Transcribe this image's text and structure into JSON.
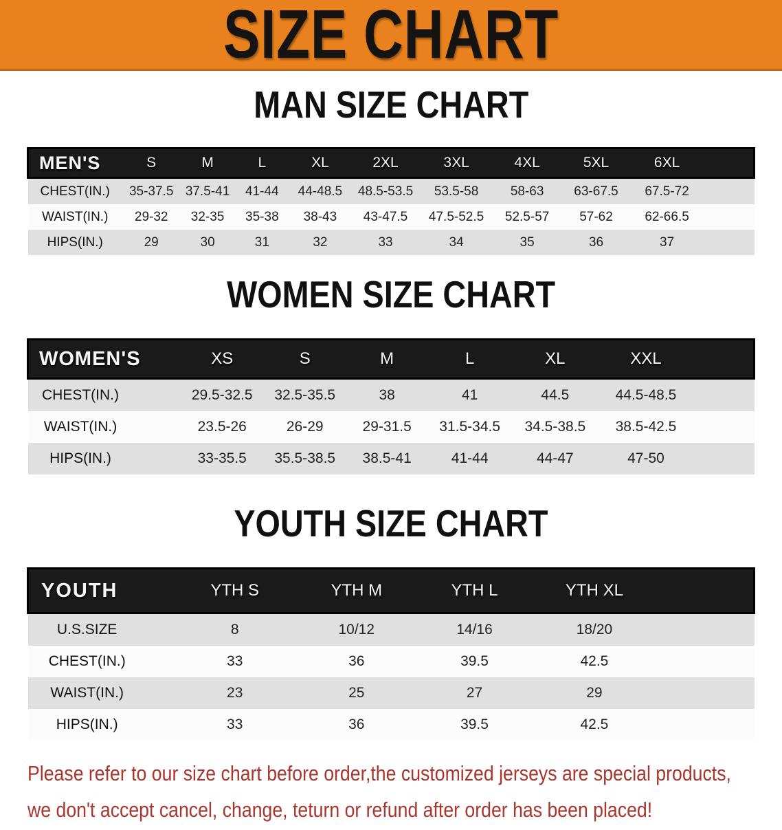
{
  "banner": {
    "title": "SIZE CHART"
  },
  "sections": {
    "men": {
      "heading": "MAN SIZE CHART",
      "table": {
        "label": "MEN'S",
        "columns": [
          "S",
          "M",
          "L",
          "XL",
          "2XL",
          "3XL",
          "4XL",
          "5XL",
          "6XL"
        ],
        "rows": [
          {
            "label": "CHEST(IN.)",
            "values": [
              "35-37.5",
              "37.5-41",
              "41-44",
              "44-48.5",
              "48.5-53.5",
              "53.5-58",
              "58-63",
              "63-67.5",
              "67.5-72"
            ]
          },
          {
            "label": "WAIST(IN.)",
            "values": [
              "29-32",
              "32-35",
              "35-38",
              "38-43",
              "43-47.5",
              "47.5-52.5",
              "52.5-57",
              "57-62",
              "62-66.5"
            ]
          },
          {
            "label": "HIPS(IN.)",
            "values": [
              "29",
              "30",
              "31",
              "32",
              "33",
              "34",
              "35",
              "36",
              "37"
            ]
          }
        ]
      }
    },
    "women": {
      "heading": "WOMEN SIZE CHART",
      "table": {
        "label": "WOMEN'S",
        "columns": [
          "XS",
          "S",
          "M",
          "L",
          "XL",
          "XXL"
        ],
        "rows": [
          {
            "label": "CHEST(IN.)",
            "values": [
              "29.5-32.5",
              "32.5-35.5",
              "38",
              "41",
              "44.5",
              "44.5-48.5"
            ]
          },
          {
            "label": "WAIST(IN.)",
            "values": [
              "23.5-26",
              "26-29",
              "29-31.5",
              "31.5-34.5",
              "34.5-38.5",
              "38.5-42.5"
            ]
          },
          {
            "label": "HIPS(IN.)",
            "values": [
              "33-35.5",
              "35.5-38.5",
              "38.5-41",
              "41-44",
              "44-47",
              "47-50"
            ]
          }
        ]
      }
    },
    "youth": {
      "heading": "YOUTH SIZE CHART",
      "table": {
        "label": "YOUTH",
        "columns": [
          "YTH S",
          "YTH M",
          "YTH L",
          "YTH XL"
        ],
        "rows": [
          {
            "label": "U.S.SIZE",
            "values": [
              "8",
              "10/12",
              "14/16",
              "18/20"
            ]
          },
          {
            "label": "CHEST(IN.)",
            "values": [
              "33",
              "36",
              "39.5",
              "42.5"
            ]
          },
          {
            "label": "WAIST(IN.)",
            "values": [
              "23",
              "25",
              "27",
              "29"
            ]
          },
          {
            "label": "HIPS(IN.)",
            "values": [
              "33",
              "36",
              "39.5",
              "42.5"
            ]
          }
        ]
      }
    }
  },
  "disclaimer": {
    "line1": "Please refer to our size chart before order,the customized jerseys are special products,",
    "line2": "we don't accept cancel, change, teturn or refund after order has been placed!"
  },
  "colors": {
    "banner_bg": "#E9821E",
    "header_bar": "#1A1A1A",
    "row_gray": "#E0E0E0",
    "warn_red": "#A8362C"
  },
  "chart_data": [
    {
      "type": "table",
      "title": "MAN SIZE CHART",
      "columns": [
        "MEN'S",
        "S",
        "M",
        "L",
        "XL",
        "2XL",
        "3XL",
        "4XL",
        "5XL",
        "6XL"
      ],
      "rows": [
        [
          "CHEST(IN.)",
          "35-37.5",
          "37.5-41",
          "41-44",
          "44-48.5",
          "48.5-53.5",
          "53.5-58",
          "58-63",
          "63-67.5",
          "67.5-72"
        ],
        [
          "WAIST(IN.)",
          "29-32",
          "32-35",
          "35-38",
          "38-43",
          "43-47.5",
          "47.5-52.5",
          "52.5-57",
          "57-62",
          "62-66.5"
        ],
        [
          "HIPS(IN.)",
          "29",
          "30",
          "31",
          "32",
          "33",
          "34",
          "35",
          "36",
          "37"
        ]
      ]
    },
    {
      "type": "table",
      "title": "WOMEN SIZE CHART",
      "columns": [
        "WOMEN'S",
        "XS",
        "S",
        "M",
        "L",
        "XL",
        "XXL"
      ],
      "rows": [
        [
          "CHEST(IN.)",
          "29.5-32.5",
          "32.5-35.5",
          "38",
          "41",
          "44.5",
          "44.5-48.5"
        ],
        [
          "WAIST(IN.)",
          "23.5-26",
          "26-29",
          "29-31.5",
          "31.5-34.5",
          "34.5-38.5",
          "38.5-42.5"
        ],
        [
          "HIPS(IN.)",
          "33-35.5",
          "35.5-38.5",
          "38.5-41",
          "41-44",
          "44-47",
          "47-50"
        ]
      ]
    },
    {
      "type": "table",
      "title": "YOUTH SIZE CHART",
      "columns": [
        "YOUTH",
        "YTH S",
        "YTH M",
        "YTH L",
        "YTH XL"
      ],
      "rows": [
        [
          "U.S.SIZE",
          "8",
          "10/12",
          "14/16",
          "18/20"
        ],
        [
          "CHEST(IN.)",
          "33",
          "36",
          "39.5",
          "42.5"
        ],
        [
          "WAIST(IN.)",
          "23",
          "25",
          "27",
          "29"
        ],
        [
          "HIPS(IN.)",
          "33",
          "36",
          "39.5",
          "42.5"
        ]
      ]
    }
  ]
}
